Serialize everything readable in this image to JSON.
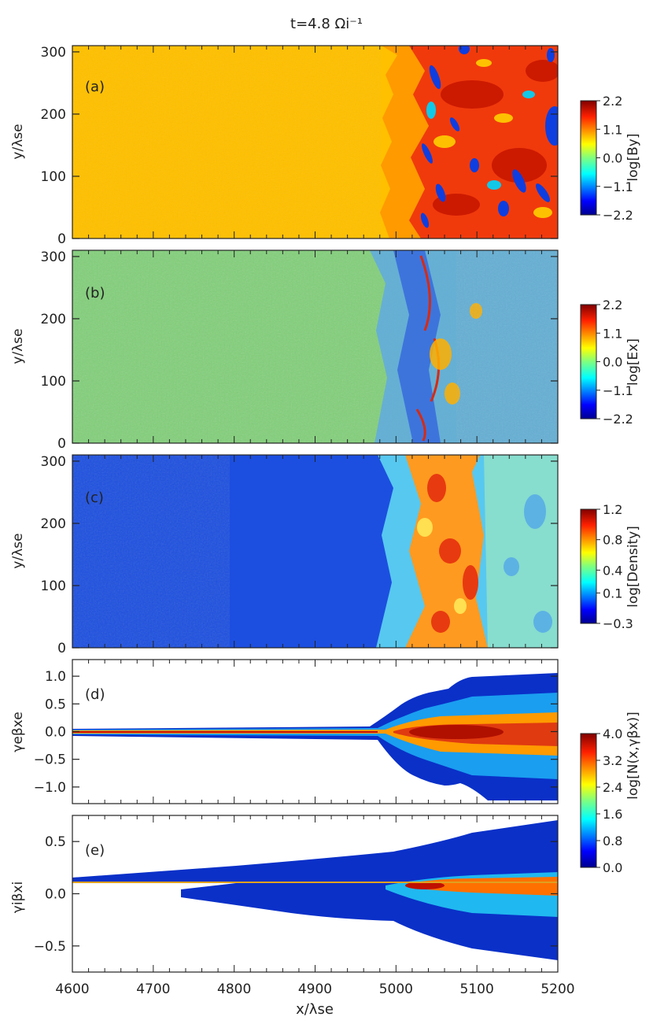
{
  "title": "t=4.8 Ωi⁻¹",
  "xlabel": "x/λse",
  "chart_data": [
    {
      "type": "heatmap",
      "panel": "a",
      "panel_label": "(a)",
      "ylabel": "y/λse",
      "xlim": [
        4600,
        5200
      ],
      "ylim": [
        0,
        310
      ],
      "yticks": [
        "0",
        "100",
        "200",
        "300"
      ],
      "colorbar": {
        "label": "log[By]",
        "ticks": [
          "2.2",
          "1.1",
          "0.0",
          "−1.1",
          "−2.2"
        ],
        "range": [
          -2.2,
          2.2
        ]
      },
      "regions": [
        {
          "x": [
            4600,
            4985
          ],
          "value_level": 0.75,
          "description_color": "#ffc000"
        },
        {
          "x": [
            4985,
            5020
          ],
          "value_level": 0.78,
          "description_color": "#ff9000"
        },
        {
          "x": [
            5020,
            5200
          ],
          "value_level": 0.9,
          "description_color": "#f03a0c"
        }
      ]
    },
    {
      "type": "heatmap",
      "panel": "b",
      "panel_label": "(b)",
      "ylabel": "y/λse",
      "xlim": [
        4600,
        5200
      ],
      "ylim": [
        0,
        310
      ],
      "yticks": [
        "0",
        "100",
        "200",
        "300"
      ],
      "colorbar": {
        "label": "log[Ex]",
        "ticks": [
          "2.2",
          "1.1",
          "0.0",
          "−1.1",
          "−2.2"
        ],
        "range": [
          -2.2,
          2.2
        ]
      }
    },
    {
      "type": "heatmap",
      "panel": "c",
      "panel_label": "(c)",
      "ylabel": "y/λse",
      "xlim": [
        4600,
        5200
      ],
      "ylim": [
        0,
        310
      ],
      "yticks": [
        "0",
        "100",
        "200",
        "300"
      ],
      "colorbar": {
        "label": "log[Density]",
        "ticks": [
          "1.2",
          "0.8",
          "0.4",
          "0.1",
          "−0.3"
        ],
        "range": [
          -0.3,
          1.2
        ]
      }
    },
    {
      "type": "heatmap",
      "panel": "d",
      "panel_label": "(d)",
      "ylabel": "γeβxe",
      "xlim": [
        4600,
        5200
      ],
      "ylim": [
        -1.3,
        1.3
      ],
      "yticks": [
        "−1.0",
        "−0.5",
        "0.0",
        "0.5",
        "1.0"
      ],
      "colorbar": {
        "label": "log[N(x,γβx)]",
        "ticks": [
          "4.0",
          "3.2",
          "2.4",
          "1.6",
          "0.8",
          "0.0"
        ],
        "range": [
          0,
          4.0
        ]
      }
    },
    {
      "type": "heatmap",
      "panel": "e",
      "panel_label": "(e)",
      "ylabel": "γiβxi",
      "xlim": [
        4600,
        5200
      ],
      "ylim": [
        -0.75,
        0.75
      ],
      "yticks": [
        "−0.5",
        "0.0",
        "0.5"
      ],
      "xticks": [
        "4600",
        "4700",
        "4800",
        "4900",
        "5000",
        "5100",
        "5200"
      ]
    }
  ],
  "colors": {
    "axis": "#222222",
    "pre_shock_a": "#ffc000",
    "pre_shock_b": "#7fd87a",
    "pre_shock_c": "#1c4fe0"
  }
}
